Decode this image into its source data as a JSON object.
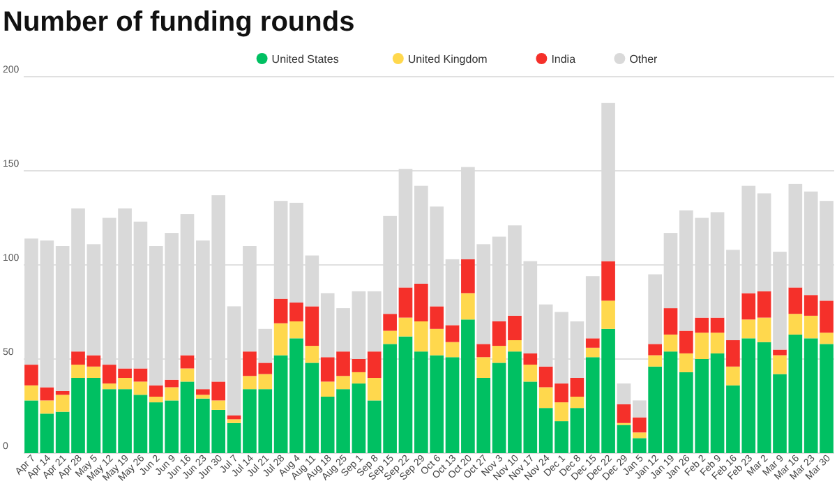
{
  "chart_data": {
    "type": "bar",
    "title": "Number of funding rounds",
    "stacked": true,
    "grid": "y",
    "legend": "top",
    "ylim": [
      0,
      200
    ],
    "yticks": [
      0,
      50,
      100,
      150,
      200
    ],
    "categories": [
      "Apr 7",
      "Apr 14",
      "Apr 21",
      "Apr 28",
      "May 5",
      "May 12",
      "May 19",
      "May 26",
      "Jun 2",
      "Jun 9",
      "Jun 16",
      "Jun 23",
      "Jun 30",
      "Jul 7",
      "Jul 14",
      "Jul 21",
      "Jul 28",
      "Aug 4",
      "Aug 11",
      "Aug 18",
      "Aug 25",
      "Sep 1",
      "Sep 8",
      "Sep 15",
      "Sep 22",
      "Sep 29",
      "Oct 6",
      "Oct 13",
      "Oct 20",
      "Oct 27",
      "Nov 3",
      "Nov 10",
      "Nov 17",
      "Nov 24",
      "Dec 1",
      "Dec 8",
      "Dec 15",
      "Dec 22",
      "Dec 29",
      "Jan 5",
      "Jan 12",
      "Jan 19",
      "Jan 26",
      "Feb 2",
      "Feb 9",
      "Feb 16",
      "Feb 23",
      "Mar 2",
      "Mar 9",
      "Mar 16",
      "Mar 23",
      "Mar 30"
    ],
    "series": [
      {
        "name": "United States",
        "color": "#00c062",
        "values": [
          28,
          21,
          22,
          40,
          40,
          34,
          34,
          31,
          27,
          28,
          38,
          29,
          23,
          16,
          34,
          34,
          52,
          61,
          48,
          30,
          34,
          37,
          28,
          58,
          62,
          54,
          52,
          51,
          71,
          40,
          48,
          54,
          38,
          24,
          17,
          24,
          51,
          66,
          15,
          8,
          46,
          54,
          43,
          50,
          53,
          36,
          61,
          59,
          42,
          63,
          61,
          58
        ]
      },
      {
        "name": "United Kingdom",
        "color": "#ffd84d",
        "values": [
          8,
          7,
          9,
          7,
          6,
          3,
          6,
          7,
          3,
          7,
          7,
          2,
          5,
          2,
          7,
          8,
          17,
          9,
          9,
          8,
          7,
          6,
          12,
          7,
          10,
          16,
          14,
          8,
          14,
          11,
          9,
          6,
          9,
          11,
          10,
          6,
          5,
          15,
          1,
          3,
          6,
          9,
          10,
          14,
          11,
          10,
          10,
          13,
          10,
          11,
          12,
          6
        ]
      },
      {
        "name": "India",
        "color": "#f5302a",
        "values": [
          11,
          7,
          2,
          7,
          6,
          10,
          5,
          7,
          6,
          4,
          7,
          3,
          10,
          2,
          13,
          6,
          13,
          10,
          21,
          13,
          13,
          7,
          14,
          9,
          16,
          20,
          12,
          9,
          18,
          7,
          13,
          13,
          6,
          11,
          10,
          10,
          5,
          21,
          10,
          8,
          6,
          14,
          12,
          8,
          8,
          14,
          14,
          14,
          3,
          14,
          11,
          17
        ]
      },
      {
        "name": "Other",
        "color": "#d9d9d9",
        "values": [
          67,
          78,
          77,
          76,
          59,
          78,
          85,
          78,
          74,
          78,
          75,
          79,
          99,
          58,
          56,
          18,
          52,
          53,
          27,
          34,
          23,
          36,
          32,
          52,
          63,
          52,
          53,
          35,
          49,
          53,
          45,
          48,
          49,
          33,
          38,
          30,
          33,
          84,
          11,
          9,
          37,
          40,
          64,
          53,
          56,
          48,
          57,
          52,
          52,
          55,
          55,
          53
        ]
      }
    ]
  }
}
